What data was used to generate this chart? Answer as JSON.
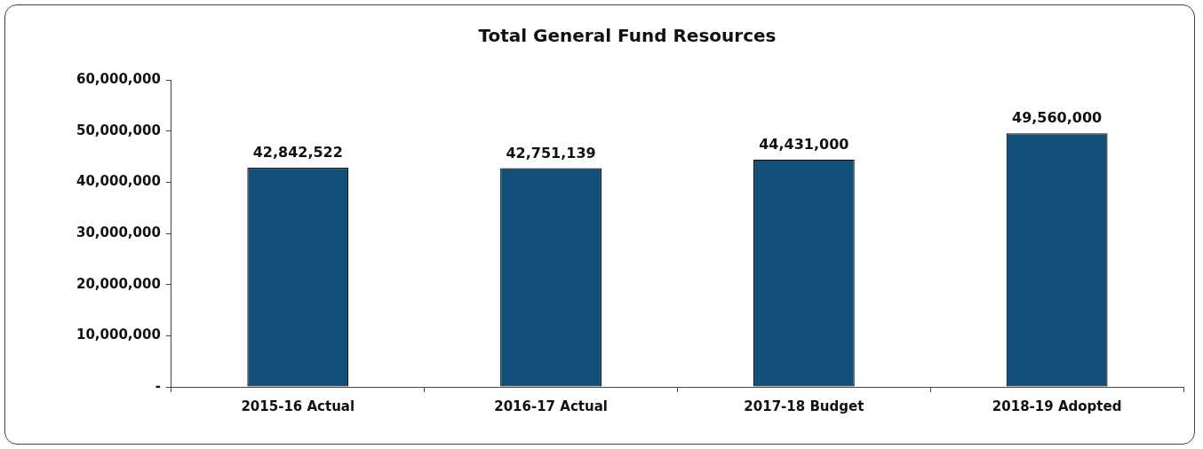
{
  "chart_data": {
    "type": "bar",
    "title": "Total General Fund Resources",
    "categories": [
      "2015-16 Actual",
      "2016-17 Actual",
      "2017-18 Budget",
      "2018-19 Adopted"
    ],
    "values": [
      42842522,
      42751139,
      44431000,
      49560000
    ],
    "value_labels": [
      "42,842,522",
      "42,751,139",
      "44,431,000",
      "49,560,000"
    ],
    "color": "#12507a",
    "ylim": [
      0,
      60000000
    ],
    "yticks": [
      {
        "value": 0,
        "label": "-"
      },
      {
        "value": 10000000,
        "label": "10,000,000"
      },
      {
        "value": 20000000,
        "label": "20,000,000"
      },
      {
        "value": 30000000,
        "label": "30,000,000"
      },
      {
        "value": 40000000,
        "label": "40,000,000"
      },
      {
        "value": 50000000,
        "label": "50,000,000"
      },
      {
        "value": 60000000,
        "label": "60,000,000"
      }
    ],
    "grid": false,
    "legend": false
  }
}
